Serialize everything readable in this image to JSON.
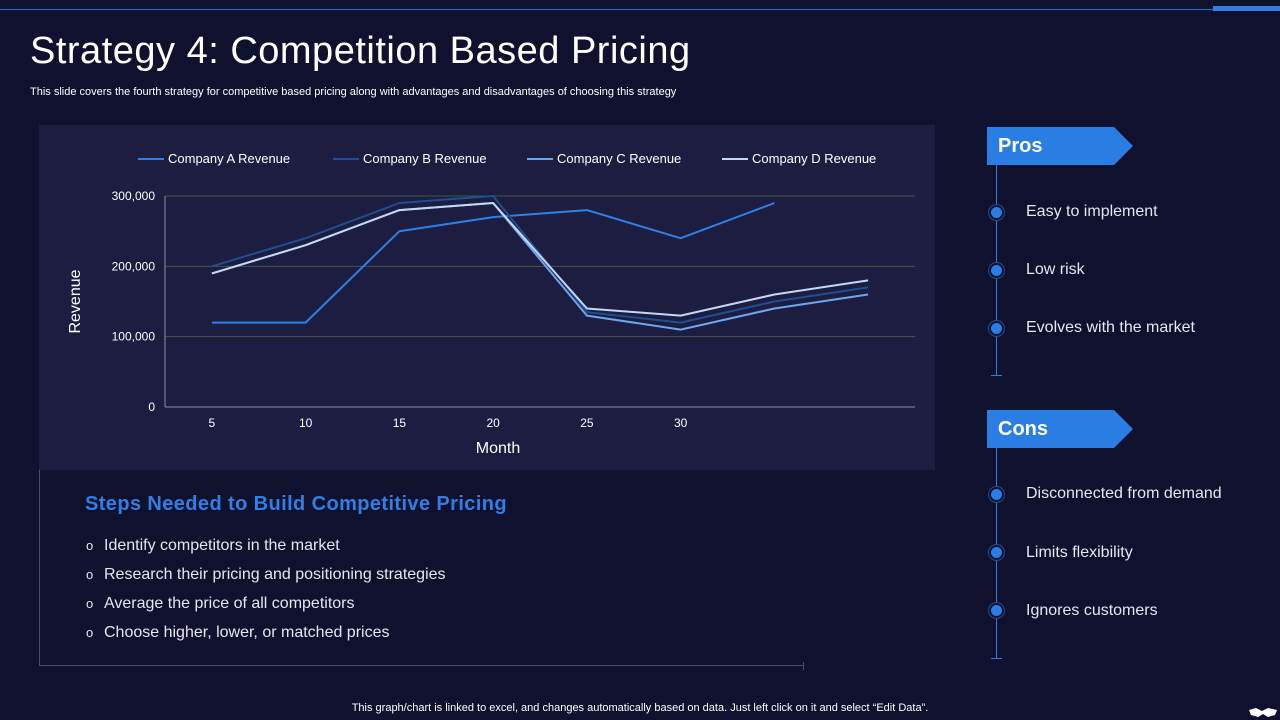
{
  "title": "Strategy 4: Competition Based Pricing",
  "subtitle": "This slide covers the fourth strategy for competitive based pricing along with advantages and disadvantages of choosing this strategy",
  "chart_data": {
    "type": "line",
    "title": "",
    "xlabel": "Month",
    "ylabel": "Revenue",
    "x_tick_labels": [
      "5",
      "10",
      "15",
      "20",
      "25",
      "30",
      "",
      ""
    ],
    "y_ticks": [
      "0",
      "100,000",
      "200,000",
      "300,000"
    ],
    "ylim": [
      0,
      300000
    ],
    "grid": true,
    "legend_position": "top",
    "series": [
      {
        "name": "Company A Revenue",
        "color": "#2f7fe6",
        "values": [
          120000,
          120000,
          250000,
          270000,
          280000,
          240000,
          290000,
          null
        ]
      },
      {
        "name": "Company B Revenue",
        "color": "#1e4f92",
        "values": [
          200000,
          240000,
          290000,
          300000,
          135000,
          120000,
          150000,
          170000
        ]
      },
      {
        "name": "Company C Revenue",
        "color": "#6ea6ee",
        "values": [
          190000,
          230000,
          280000,
          290000,
          130000,
          110000,
          140000,
          160000
        ]
      },
      {
        "name": "Company D Revenue",
        "color": "#c4d7f6",
        "values": [
          190000,
          230000,
          280000,
          290000,
          140000,
          130000,
          160000,
          180000
        ]
      }
    ]
  },
  "steps": {
    "heading": "Steps Needed to Build Competitive Pricing",
    "bullet": "o",
    "items": [
      "Identify  competitors in the market",
      "Research their pricing and positioning strategies",
      "Average the price of all competitors",
      "Choose higher,  lower, or matched prices"
    ]
  },
  "pros": {
    "label": "Pros",
    "items": [
      "Easy to implement",
      "Low risk",
      "Evolves with the market"
    ]
  },
  "cons": {
    "label": "Cons",
    "items": [
      "Disconnected from demand",
      "Limits flexibility",
      "Ignores customers"
    ]
  },
  "footer": "This graph/chart is linked to excel,  and changes automatically based on data. Just left click on it and select “Edit Data”.",
  "icons": {
    "timeline_marker": "dot-icon",
    "corner_logo": "handshake-icon"
  }
}
